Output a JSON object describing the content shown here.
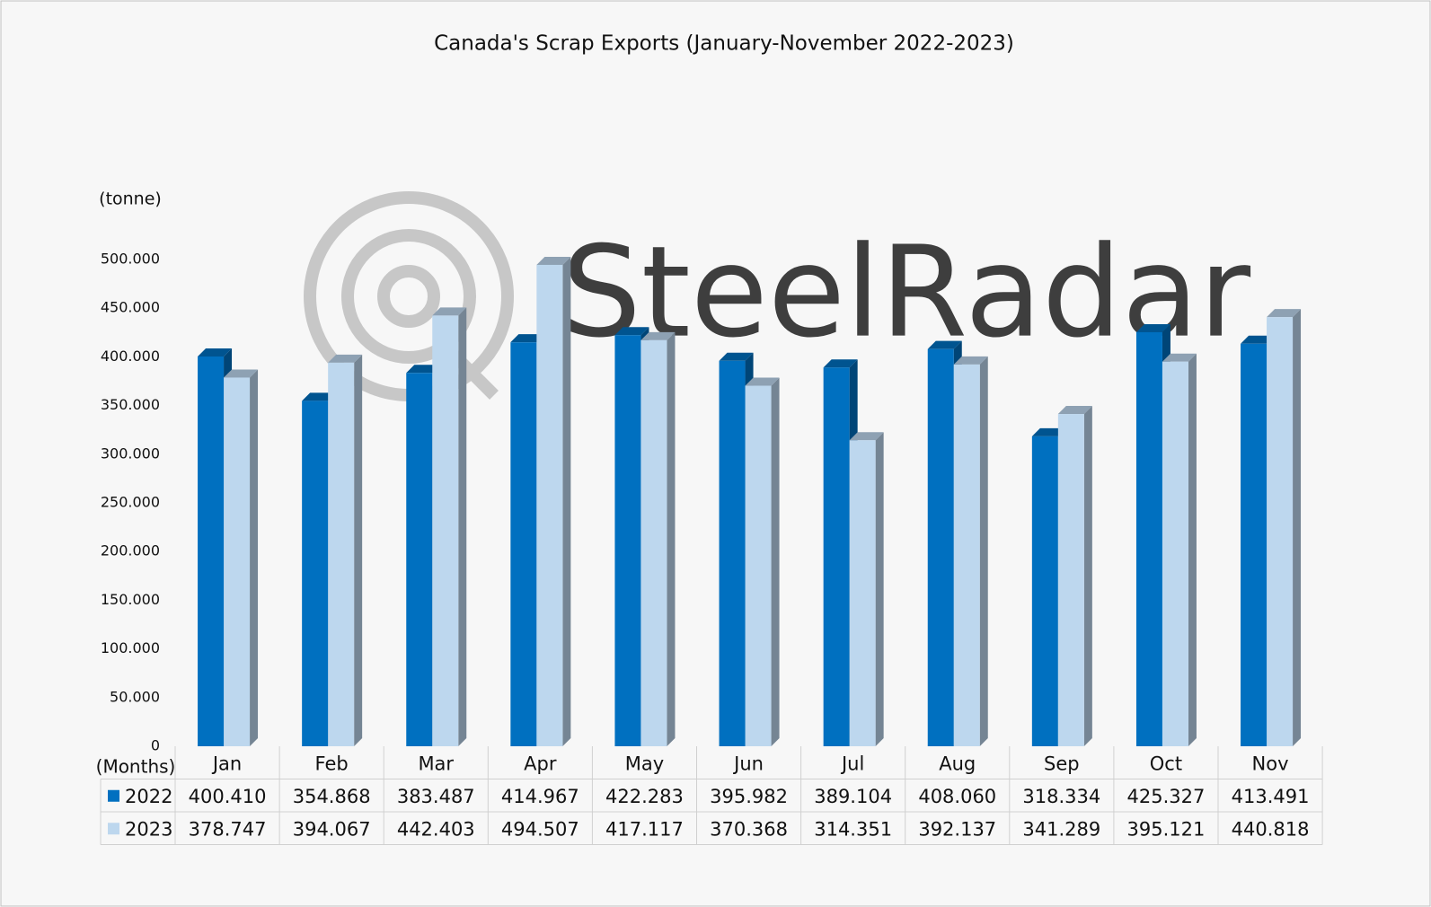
{
  "chart_data": {
    "type": "bar3d",
    "title": "Canada's Scrap Exports (January-November 2022-2023)",
    "y_label": "(tonne)",
    "x_label": "(Months)",
    "watermark": "SteelRadar",
    "categories": [
      "Jan",
      "Feb",
      "Mar",
      "Apr",
      "May",
      "Jun",
      "Jul",
      "Aug",
      "Sep",
      "Oct",
      "Nov"
    ],
    "series": [
      {
        "name": "2022",
        "color": "#0070c0",
        "values": [
          400410,
          354868,
          383487,
          414967,
          422283,
          395982,
          389104,
          408060,
          318334,
          425327,
          413491
        ],
        "value_labels": [
          "400.410",
          "354.868",
          "383.487",
          "414.967",
          "422.283",
          "395.982",
          "389.104",
          "408.060",
          "318.334",
          "425.327",
          "413.491"
        ]
      },
      {
        "name": "2023",
        "color": "#bdd7ee",
        "values": [
          378747,
          394067,
          442403,
          494507,
          417117,
          370368,
          314351,
          392137,
          341289,
          395121,
          440818
        ],
        "value_labels": [
          "378.747",
          "394.067",
          "442.403",
          "494.507",
          "417.117",
          "370.368",
          "314.351",
          "392.137",
          "341.289",
          "395.121",
          "440.818"
        ]
      }
    ],
    "ylim": [
      0,
      500000
    ],
    "yticks": [
      0,
      {
        "value": 50000,
        "label": "50.000"
      },
      {
        "value": 100000,
        "label": "100.000"
      },
      {
        "value": 150000,
        "label": "150.000"
      },
      {
        "value": 200000,
        "label": "200.000"
      },
      {
        "value": 250000,
        "label": "250.000"
      },
      {
        "value": 300000,
        "label": "300.000"
      },
      {
        "value": 350000,
        "label": "350.000"
      },
      {
        "value": 400000,
        "label": "400.000"
      },
      {
        "value": 450000,
        "label": "450.000"
      },
      {
        "value": 500000,
        "label": "500.000"
      }
    ]
  }
}
